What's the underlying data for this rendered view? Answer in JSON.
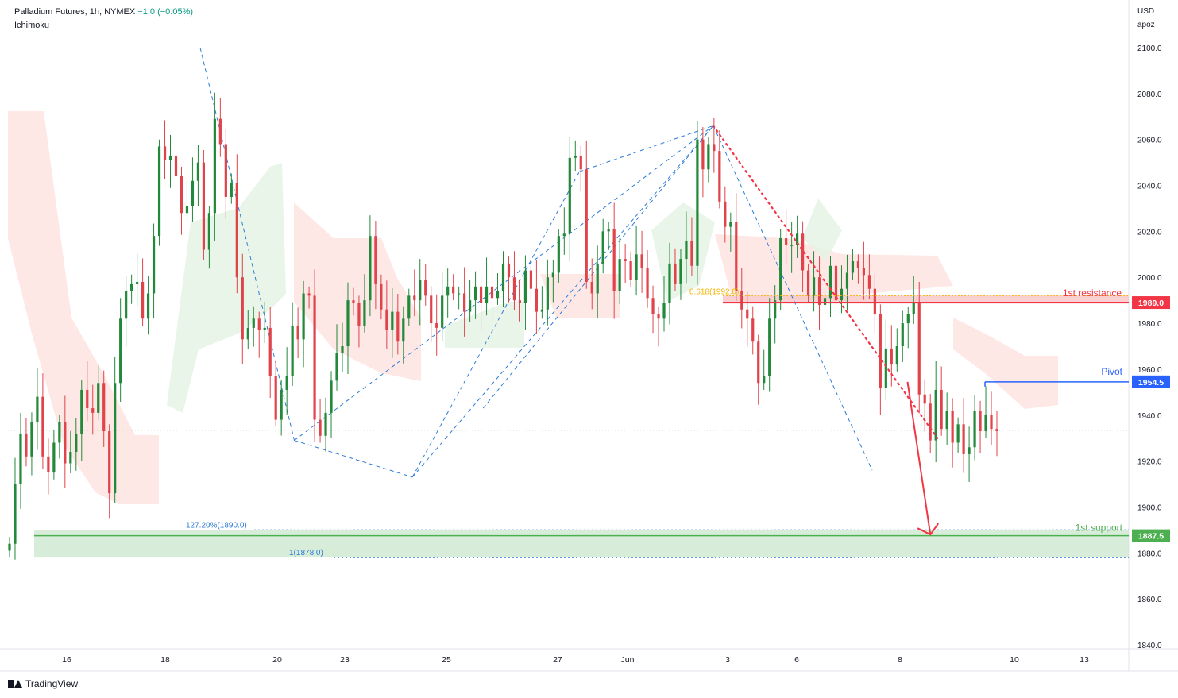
{
  "header": {
    "symbol": "Palladium Futures, 1h, NYMEX",
    "change": "−1.0 (−0.05%)",
    "indicator": "Ichimoku"
  },
  "currency": "USD",
  "currency_sub": "apoz",
  "branding": "TradingView",
  "colors": {
    "bull": "#22893a",
    "bear": "#e0434a",
    "resistance": "#f23645",
    "pivot": "#2962ff",
    "support": "#4caf50",
    "pattern": "#2e7cd6",
    "fib_orange": "#f5b400",
    "cloud_bear": "#fde0de",
    "cloud_bull": "#e4f3e4",
    "price_line": "#2e7d32"
  },
  "chart_data": {
    "type": "candlestick",
    "title": "Palladium Futures, 1h, NYMEX",
    "y_axis": {
      "range": [
        1835,
        2115
      ],
      "ticks": [
        1840,
        1860,
        1880,
        1900,
        1920,
        1940,
        1960,
        1980,
        2000,
        2020,
        2040,
        2060,
        2080,
        2100
      ],
      "tick_labels": [
        "1840.0",
        "1860.0",
        "1880.0",
        "1900.0",
        "1920.0",
        "1940.0",
        "1960.0",
        "1980.0",
        "2000.0",
        "2020.0",
        "2040.0",
        "2060.0",
        "2080.0",
        "2100.0"
      ]
    },
    "x_axis": {
      "labels": [
        "16",
        "18",
        "20",
        "23",
        "25",
        "27",
        "Jun",
        "3",
        "6",
        "8",
        "10",
        "13"
      ]
    },
    "key_levels": [
      {
        "name": "1st resistance",
        "price": 1989.0,
        "label": "1989.0"
      },
      {
        "name": "Pivot",
        "price": 1954.5,
        "label": "1954.5"
      },
      {
        "name": "1st support",
        "price": 1887.5,
        "label": "1887.5"
      }
    ],
    "fib_labels": [
      {
        "text": "0.618(1992.0)",
        "price": 1992.0
      },
      {
        "text": "127.20%(1890.0)",
        "price": 1890.0
      },
      {
        "text": "1(1878.0)",
        "price": 1878.0
      }
    ],
    "last_price": 1933.5,
    "zigzag_pivots": [
      [
        0.0,
        2100
      ],
      [
        1.73,
        1929
      ],
      [
        3.9,
        1913
      ],
      [
        6.97,
        2046
      ],
      [
        9.43,
        2066
      ],
      [
        12.35,
        1916
      ]
    ],
    "pattern_lines": [
      [
        [
          3.9,
          1913
        ],
        [
          9.43,
          2066
        ]
      ],
      [
        [
          1.73,
          1929
        ],
        [
          9.43,
          2066
        ]
      ],
      [
        [
          5.2,
          1943
        ],
        [
          9.43,
          2066
        ]
      ]
    ],
    "trendline": [
      [
        9.43,
        2066
      ],
      [
        13.55,
        1930
      ]
    ],
    "forecast_arrow": [
      [
        13.0,
        1954.5
      ],
      [
        13.42,
        1888
      ]
    ],
    "candles_close": [
      1884,
      1910,
      1932,
      1922,
      1937,
      1948,
      1922,
      1915,
      1928,
      1937,
      1919,
      1924,
      1932,
      1951,
      1943,
      1941,
      1954,
      1933,
      1906,
      1954,
      1982,
      1994,
      1997,
      1998,
      1982,
      1993,
      2018,
      2057,
      2051,
      2053,
      2044,
      2028,
      2031,
      2042,
      2050,
      2012,
      2028,
      2069,
      2058,
      2035,
      2041,
      2000,
      1973,
      1978,
      1982,
      1977,
      1978,
      1957,
      1938,
      1951,
      1957,
      1979,
      1973,
      1993,
      1992,
      1938,
      1931,
      1941,
      1955,
      1967,
      1970,
      1990,
      1989,
      1979,
      1990,
      2018,
      1997,
      1986,
      1977,
      1985,
      1972,
      1982,
      1992,
      1990,
      1999,
      1992,
      1980,
      1978,
      1992,
      1996,
      1993,
      1993,
      1985,
      1990,
      1996,
      1989,
      1996,
      1991,
      1994,
      2006,
      2000,
      1990,
      1989,
      2003,
      1995,
      1985,
      1986,
      2000,
      2002,
      2018,
      2019,
      2052,
      2053,
      2047,
      1998,
      1993,
      2006,
      2020,
      2021,
      1994,
      2008,
      2007,
      1999,
      2010,
      2004,
      1991,
      1984,
      1982,
      1989,
      2006,
      1997,
      2008,
      2016,
      2005,
      2060,
      2047,
      2058,
      2055,
      2033,
      2022,
      2024,
      1994,
      1986,
      1982,
      1972,
      1954,
      1957,
      1982,
      1990,
      2017,
      2014,
      2014,
      2019,
      2003,
      1992,
      2000,
      1988,
      1991,
      2005,
      1990,
      1995,
      2002,
      2007,
      2004,
      2001,
      1995,
      1984,
      1952,
      1969,
      1962,
      1970,
      1980,
      1984,
      1989,
      1949,
      1945,
      1929,
      1951,
      1934,
      1942,
      1928,
      1936,
      1923,
      1926,
      1942,
      1933,
      1940,
      1934,
      1933
    ],
    "series": [
      {
        "name": "Palladium Futures 1h",
        "points": "candles_close"
      }
    ],
    "grid": false,
    "legend": "none"
  }
}
